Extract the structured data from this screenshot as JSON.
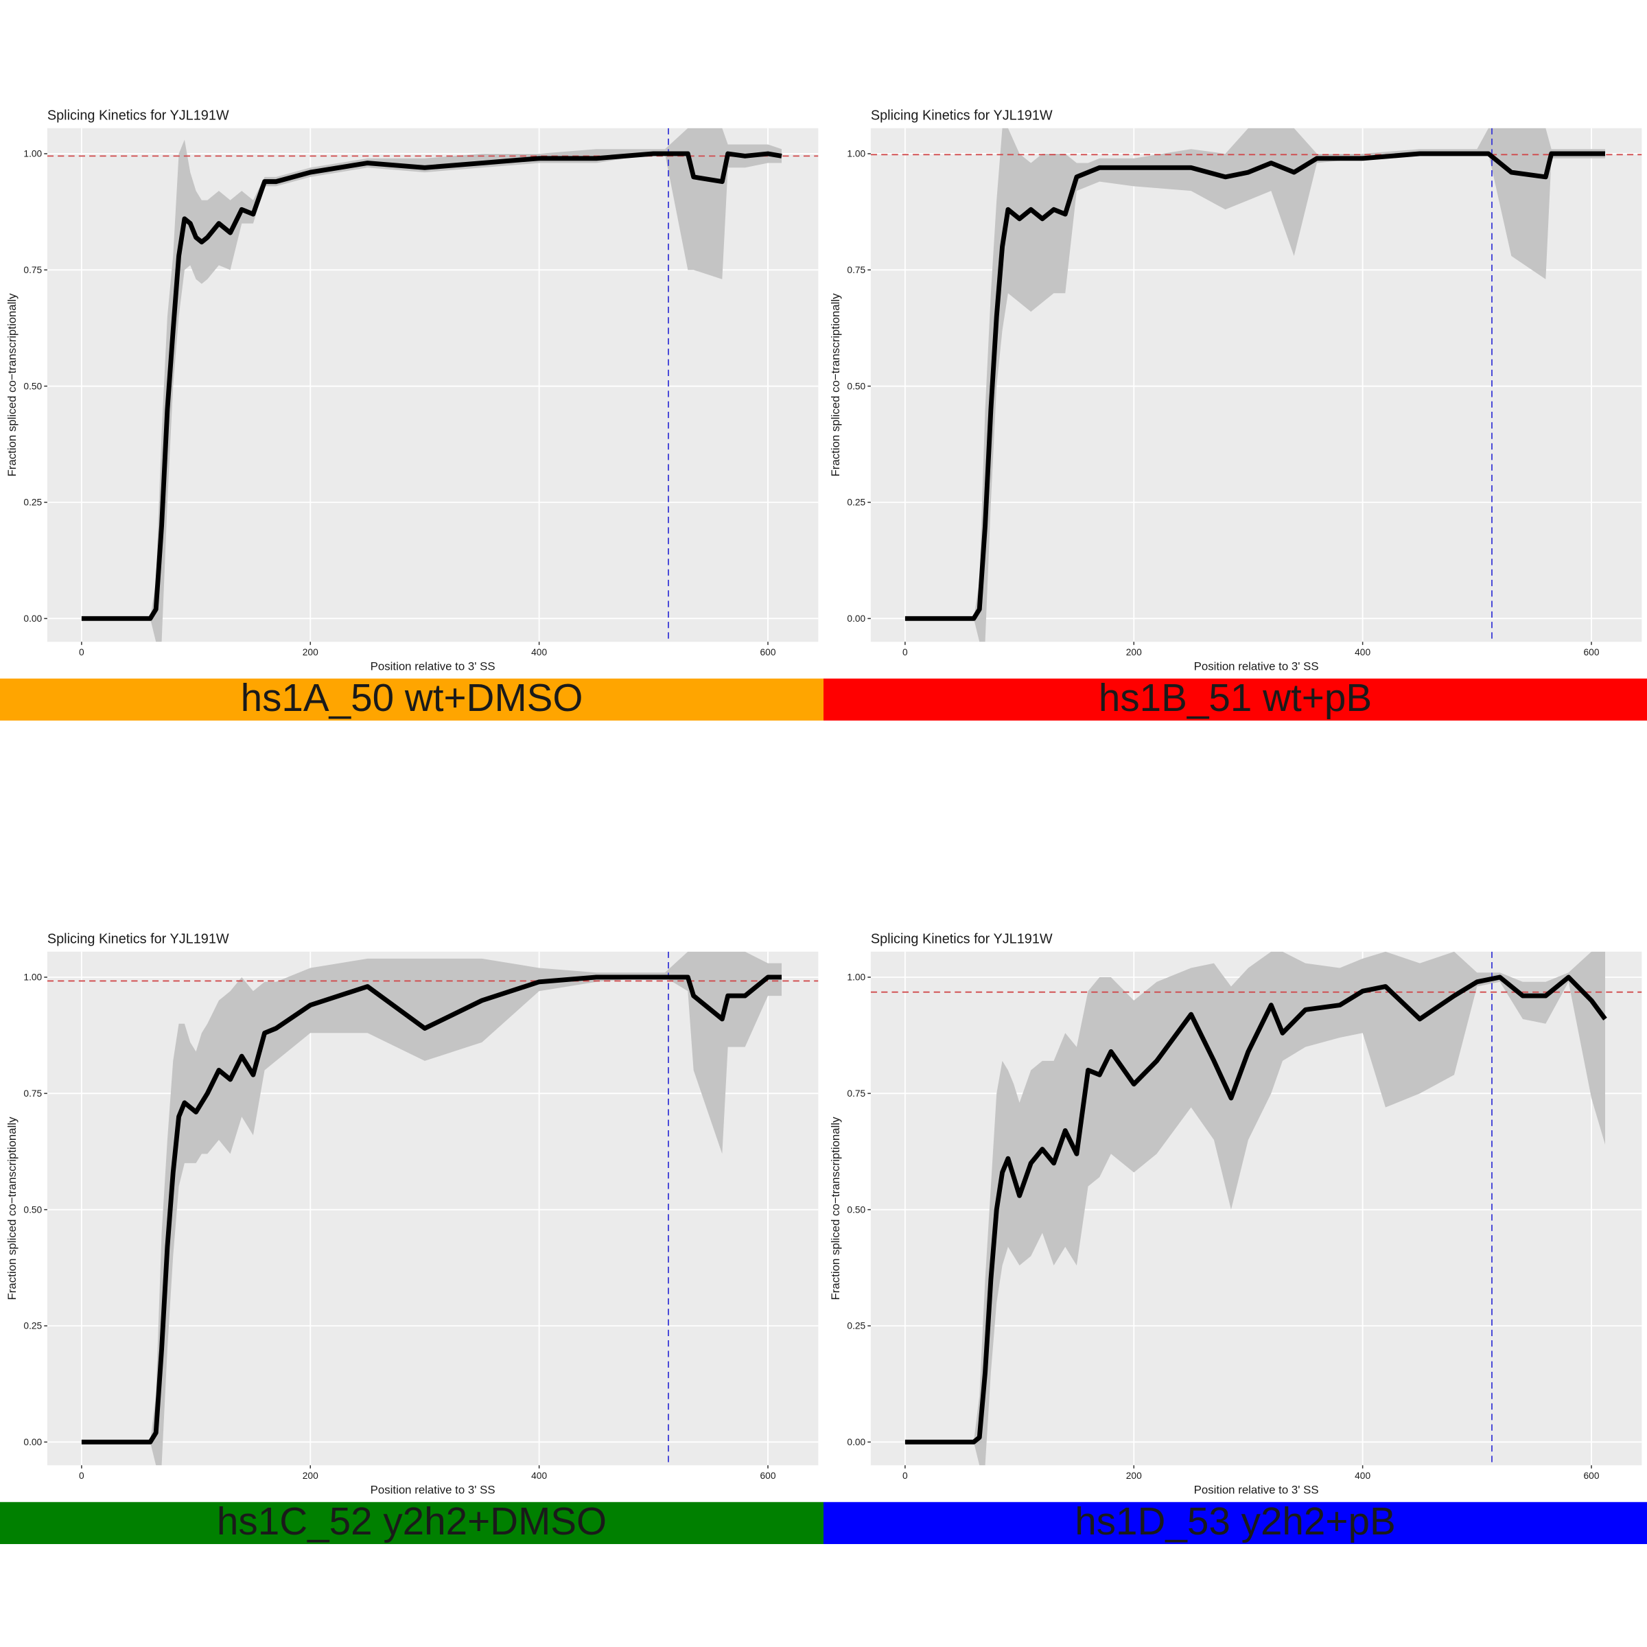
{
  "chart_data": [
    {
      "type": "line",
      "title": "Splicing Kinetics for YJL191W",
      "xlabel": "Position relative to 3' SS",
      "ylabel": "Fraction spliced co−transcriptionally",
      "caption": "hs1A_50 wt+DMSO",
      "caption_color": "#FFA500",
      "x": [
        0,
        60,
        65,
        70,
        75,
        80,
        85,
        90,
        95,
        100,
        105,
        110,
        120,
        130,
        140,
        150,
        160,
        170,
        200,
        250,
        300,
        350,
        400,
        450,
        500,
        510,
        530,
        535,
        560,
        565,
        580,
        600,
        612
      ],
      "series": [
        {
          "color": "#000000",
          "band_color": "#c4c4c4",
          "values": [
            0,
            0,
            0.02,
            0.2,
            0.45,
            0.62,
            0.78,
            0.86,
            0.85,
            0.82,
            0.81,
            0.82,
            0.85,
            0.83,
            0.88,
            0.87,
            0.94,
            0.94,
            0.96,
            0.98,
            0.97,
            0.98,
            0.99,
            0.99,
            1.0,
            1.0,
            1.0,
            0.95,
            0.94,
            1.0,
            0.995,
            1.0,
            0.995
          ],
          "lower": [
            0,
            0,
            -0.05,
            -0.05,
            0.25,
            0.5,
            0.65,
            0.75,
            0.76,
            0.73,
            0.72,
            0.73,
            0.76,
            0.75,
            0.85,
            0.85,
            0.93,
            0.93,
            0.95,
            0.97,
            0.96,
            0.97,
            0.98,
            0.98,
            1.0,
            1.0,
            0.75,
            0.75,
            0.73,
            0.97,
            0.97,
            0.98,
            0.98
          ],
          "upper": [
            0,
            0,
            0.08,
            0.4,
            0.65,
            0.78,
            1.0,
            1.03,
            0.96,
            0.92,
            0.9,
            0.9,
            0.92,
            0.9,
            0.92,
            0.9,
            0.95,
            0.95,
            0.97,
            0.99,
            0.99,
            1.0,
            1.0,
            1.01,
            1.01,
            1.01,
            1.055,
            1.055,
            1.055,
            1.02,
            1.02,
            1.02,
            1.01
          ]
        }
      ],
      "hline": 0.995,
      "hline_color": "#d0494b",
      "vline": 513,
      "vline_color": "#3b3bd6",
      "xlim": [
        -30,
        644
      ],
      "ylim": [
        -0.05,
        1.055
      ],
      "xticks": [
        0,
        200,
        400,
        600
      ],
      "yticks": [
        {
          "value": 0,
          "label": "0.00"
        },
        {
          "value": 0.25,
          "label": "0.25"
        },
        {
          "value": 0.5,
          "label": "0.50"
        },
        {
          "value": 0.75,
          "label": "0.75"
        },
        {
          "value": 1,
          "label": "1.00"
        }
      ],
      "grid": true
    },
    {
      "type": "line",
      "title": "Splicing Kinetics for YJL191W",
      "xlabel": "Position relative to 3' SS",
      "ylabel": "Fraction spliced co−transcriptionally",
      "caption": "hs1B_51 wt+pB",
      "caption_color": "#FF0000",
      "x": [
        0,
        60,
        65,
        70,
        75,
        80,
        85,
        90,
        100,
        110,
        120,
        130,
        140,
        150,
        160,
        170,
        200,
        250,
        280,
        300,
        320,
        340,
        360,
        400,
        450,
        500,
        510,
        530,
        560,
        565,
        580,
        600,
        612
      ],
      "series": [
        {
          "color": "#000000",
          "band_color": "#c4c4c4",
          "values": [
            0,
            0,
            0.02,
            0.2,
            0.45,
            0.65,
            0.8,
            0.88,
            0.86,
            0.88,
            0.86,
            0.88,
            0.87,
            0.95,
            0.96,
            0.97,
            0.97,
            0.97,
            0.95,
            0.96,
            0.98,
            0.96,
            0.99,
            0.99,
            1.0,
            1.0,
            1.0,
            0.96,
            0.95,
            1.0,
            1.0,
            1.0,
            1.0
          ],
          "lower": [
            0,
            0,
            -0.05,
            -0.05,
            0.25,
            0.5,
            0.62,
            0.7,
            0.68,
            0.66,
            0.68,
            0.7,
            0.7,
            0.92,
            0.93,
            0.94,
            0.93,
            0.92,
            0.88,
            0.9,
            0.92,
            0.78,
            0.98,
            0.99,
            1.0,
            1.0,
            1.0,
            0.78,
            0.73,
            0.99,
            0.99,
            0.99,
            0.99
          ],
          "upper": [
            0,
            0,
            0.08,
            0.45,
            0.7,
            0.9,
            1.055,
            1.055,
            1.0,
            0.98,
            1.0,
            1.0,
            1.0,
            0.98,
            0.98,
            0.99,
            0.99,
            1.01,
            1.0,
            1.055,
            1.055,
            1.055,
            1.0,
            1.0,
            1.01,
            1.01,
            1.055,
            1.055,
            1.055,
            1.01,
            1.01,
            1.01,
            1.01
          ]
        }
      ],
      "hline": 0.998,
      "hline_color": "#d0494b",
      "vline": 513,
      "vline_color": "#3b3bd6",
      "xlim": [
        -30,
        644
      ],
      "ylim": [
        -0.05,
        1.055
      ],
      "xticks": [
        0,
        200,
        400,
        600
      ],
      "yticks": [
        {
          "value": 0,
          "label": "0.00"
        },
        {
          "value": 0.25,
          "label": "0.25"
        },
        {
          "value": 0.5,
          "label": "0.50"
        },
        {
          "value": 0.75,
          "label": "0.75"
        },
        {
          "value": 1,
          "label": "1.00"
        }
      ],
      "grid": true
    },
    {
      "type": "line",
      "title": "Splicing Kinetics for YJL191W",
      "xlabel": "Position relative to 3' SS",
      "ylabel": "Fraction spliced co−transcriptionally",
      "caption": "hs1C_52 y2h2+DMSO",
      "caption_color": "#008000",
      "x": [
        0,
        60,
        65,
        70,
        75,
        80,
        85,
        90,
        95,
        100,
        105,
        110,
        120,
        130,
        140,
        150,
        160,
        170,
        200,
        250,
        300,
        350,
        400,
        450,
        500,
        510,
        530,
        535,
        560,
        565,
        580,
        600,
        612
      ],
      "series": [
        {
          "color": "#000000",
          "band_color": "#c4c4c4",
          "values": [
            0,
            0,
            0.02,
            0.2,
            0.42,
            0.58,
            0.7,
            0.73,
            0.72,
            0.71,
            0.73,
            0.75,
            0.8,
            0.78,
            0.83,
            0.79,
            0.88,
            0.89,
            0.94,
            0.98,
            0.89,
            0.95,
            0.99,
            1.0,
            1.0,
            1.0,
            1.0,
            0.96,
            0.91,
            0.96,
            0.96,
            1.0,
            1.0
          ],
          "lower": [
            0,
            0,
            -0.05,
            -0.05,
            0.2,
            0.4,
            0.55,
            0.6,
            0.6,
            0.6,
            0.62,
            0.62,
            0.65,
            0.62,
            0.7,
            0.66,
            0.8,
            0.82,
            0.88,
            0.88,
            0.82,
            0.86,
            0.97,
            0.99,
            1.0,
            1.0,
            0.97,
            0.8,
            0.62,
            0.85,
            0.85,
            0.96,
            0.96
          ],
          "upper": [
            0,
            0,
            0.1,
            0.45,
            0.65,
            0.82,
            0.9,
            0.9,
            0.86,
            0.84,
            0.88,
            0.9,
            0.95,
            0.97,
            1.0,
            0.97,
            0.99,
            0.99,
            1.02,
            1.04,
            1.04,
            1.04,
            1.02,
            1.01,
            1.01,
            1.01,
            1.055,
            1.055,
            1.055,
            1.055,
            1.055,
            1.03,
            1.03
          ]
        }
      ],
      "hline": 0.992,
      "hline_color": "#d0494b",
      "vline": 513,
      "vline_color": "#3b3bd6",
      "xlim": [
        -30,
        644
      ],
      "ylim": [
        -0.05,
        1.055
      ],
      "xticks": [
        0,
        200,
        400,
        600
      ],
      "yticks": [
        {
          "value": 0,
          "label": "0.00"
        },
        {
          "value": 0.25,
          "label": "0.25"
        },
        {
          "value": 0.5,
          "label": "0.50"
        },
        {
          "value": 0.75,
          "label": "0.75"
        },
        {
          "value": 1,
          "label": "1.00"
        }
      ],
      "grid": true
    },
    {
      "type": "line",
      "title": "Splicing Kinetics for YJL191W",
      "xlabel": "Position relative to 3' SS",
      "ylabel": "Fraction spliced co−transcriptionally",
      "caption": "hs1D_53 y2h2+pB",
      "caption_color": "#0000FF",
      "x": [
        0,
        60,
        65,
        70,
        75,
        80,
        85,
        90,
        95,
        100,
        110,
        120,
        130,
        140,
        150,
        160,
        170,
        180,
        200,
        220,
        250,
        270,
        285,
        300,
        320,
        330,
        350,
        380,
        400,
        420,
        450,
        480,
        500,
        520,
        540,
        560,
        580,
        600,
        612
      ],
      "series": [
        {
          "color": "#000000",
          "band_color": "#c4c4c4",
          "values": [
            0,
            0,
            0.01,
            0.15,
            0.35,
            0.5,
            0.58,
            0.61,
            0.57,
            0.53,
            0.6,
            0.63,
            0.6,
            0.67,
            0.62,
            0.8,
            0.79,
            0.84,
            0.77,
            0.82,
            0.92,
            0.82,
            0.74,
            0.84,
            0.94,
            0.88,
            0.93,
            0.94,
            0.97,
            0.98,
            0.91,
            0.96,
            0.99,
            1.0,
            0.96,
            0.96,
            1.0,
            0.95,
            0.91
          ],
          "lower": [
            0,
            0,
            -0.05,
            -0.05,
            0.15,
            0.3,
            0.38,
            0.42,
            0.4,
            0.38,
            0.4,
            0.45,
            0.38,
            0.42,
            0.38,
            0.55,
            0.57,
            0.62,
            0.58,
            0.62,
            0.72,
            0.65,
            0.5,
            0.65,
            0.75,
            0.82,
            0.85,
            0.87,
            0.88,
            0.72,
            0.75,
            0.79,
            0.98,
            0.99,
            0.91,
            0.9,
            0.99,
            0.74,
            0.64
          ],
          "upper": [
            0,
            0,
            0.1,
            0.35,
            0.55,
            0.75,
            0.82,
            0.8,
            0.77,
            0.73,
            0.8,
            0.82,
            0.82,
            0.88,
            0.85,
            0.97,
            1.0,
            1.0,
            0.95,
            0.99,
            1.02,
            1.03,
            0.98,
            1.02,
            1.055,
            1.055,
            1.03,
            1.02,
            1.04,
            1.055,
            1.03,
            1.055,
            1.01,
            1.01,
            0.99,
            0.99,
            1.01,
            1.055,
            1.055
          ]
        }
      ],
      "hline": 0.968,
      "hline_color": "#d0494b",
      "vline": 513,
      "vline_color": "#3b3bd6",
      "xlim": [
        -30,
        644
      ],
      "ylim": [
        -0.05,
        1.055
      ],
      "xticks": [
        0,
        200,
        400,
        600
      ],
      "yticks": [
        {
          "value": 0,
          "label": "0.00"
        },
        {
          "value": 0.25,
          "label": "0.25"
        },
        {
          "value": 0.5,
          "label": "0.50"
        },
        {
          "value": 0.75,
          "label": "0.75"
        },
        {
          "value": 1,
          "label": "1.00"
        }
      ],
      "grid": true
    }
  ]
}
